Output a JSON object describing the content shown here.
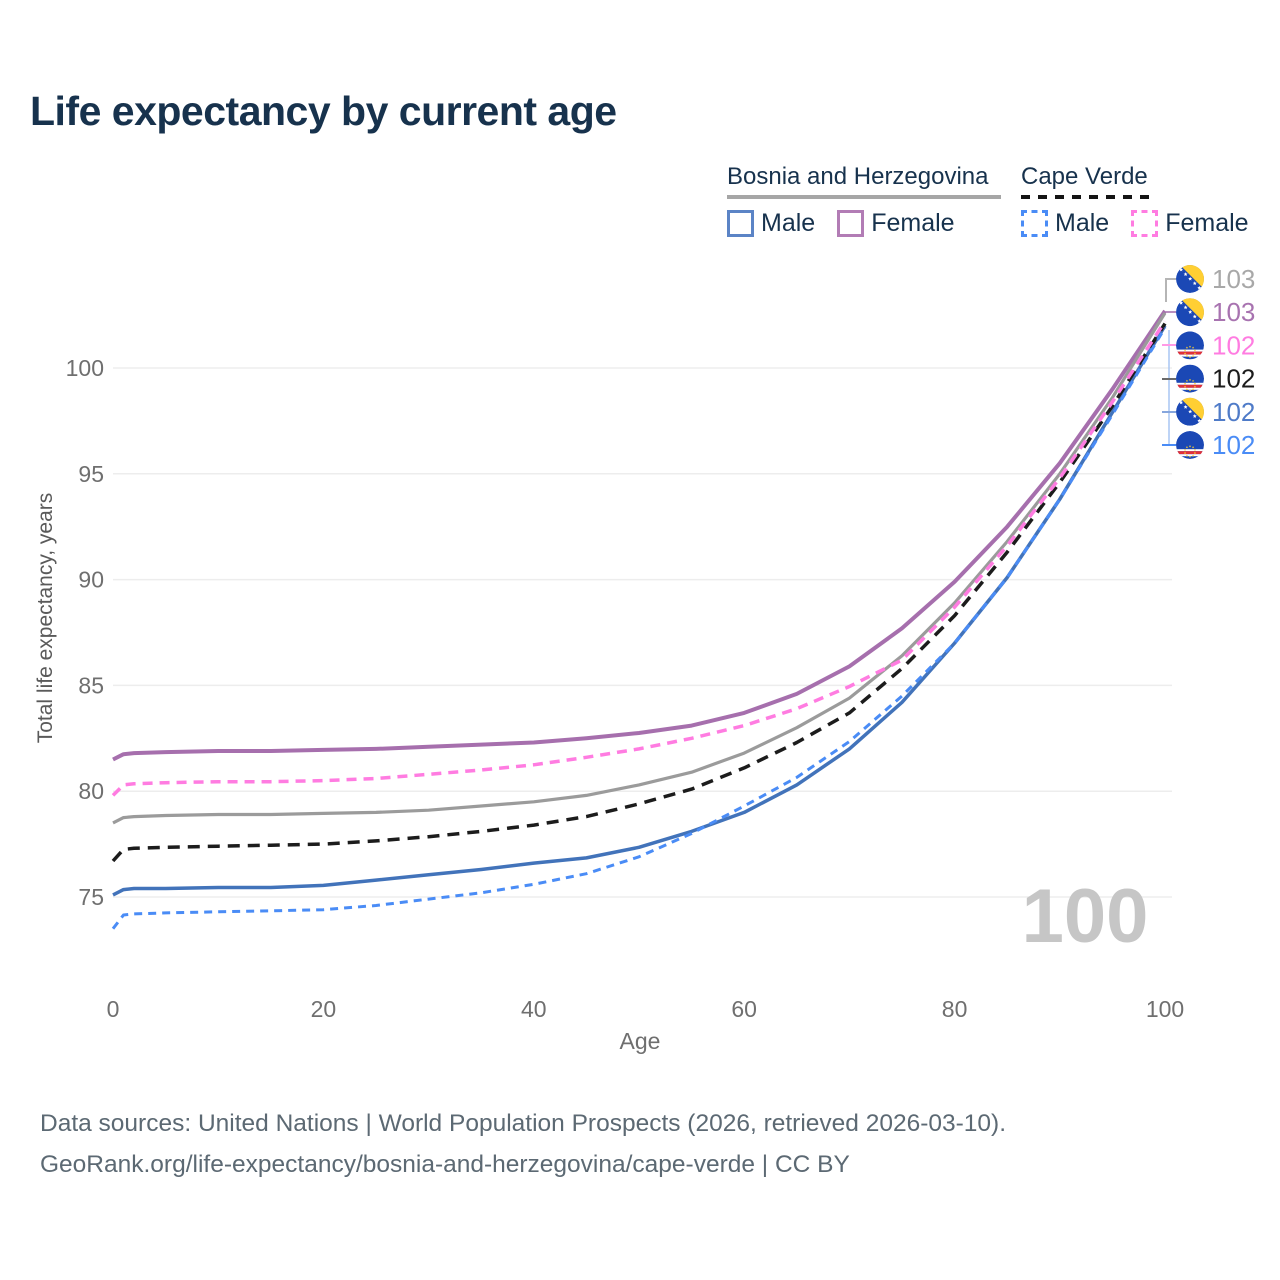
{
  "title": "Life expectancy by current age",
  "legend": {
    "bosnia": {
      "title": "Bosnia and Herzegovina",
      "male": "Male",
      "female": "Female"
    },
    "cape_verde": {
      "title": "Cape Verde",
      "male": "Male",
      "female": "Female"
    }
  },
  "watermark": "100",
  "footer": {
    "line1": "Data sources: United Nations | World Population Prospects (2026, retrieved 2026-03-10).",
    "line2": "GeoRank.org/life-expectancy/bosnia-and-herzegovina/cape-verde | CC BY"
  },
  "colors": {
    "title_text": "#17324d",
    "axis_text": "#6f6f6f",
    "grid": "#ededed",
    "bosnia_female": "#a66fad",
    "bosnia_total": "#9b9b9b",
    "bosnia_male": "#4273ba",
    "cape_verde_female": "#ff7ce1",
    "cape_verde_total": "#1c1c1c",
    "cape_verde_male": "#4a8cf6",
    "watermark": "#c6c6c6"
  },
  "chart_data": {
    "type": "line",
    "title": "Life expectancy by current age",
    "xlabel": "Age",
    "ylabel": "Total life expectancy, years",
    "xlim": [
      0,
      100
    ],
    "ylim": [
      73,
      103.5
    ],
    "xticks": [
      0,
      20,
      40,
      60,
      80,
      100
    ],
    "yticks": [
      75,
      80,
      85,
      90,
      95,
      100
    ],
    "grid": true,
    "legend_position": "top-right",
    "x": [
      0,
      1,
      2,
      5,
      10,
      15,
      20,
      25,
      30,
      35,
      40,
      45,
      50,
      55,
      60,
      65,
      70,
      75,
      80,
      85,
      90,
      95,
      100
    ],
    "series": [
      {
        "name": "Bosnia and Herzegovina Female",
        "color": "#a66fad",
        "dash": null,
        "width": 4,
        "values": [
          81.5,
          81.75,
          81.8,
          81.85,
          81.9,
          81.9,
          81.95,
          82.0,
          82.1,
          82.2,
          82.3,
          82.5,
          82.75,
          83.1,
          83.7,
          84.6,
          85.9,
          87.7,
          89.9,
          92.5,
          95.5,
          99.0,
          102.7
        ]
      },
      {
        "name": "Bosnia and Herzegovina Total",
        "color": "#9b9b9b",
        "dash": null,
        "width": 3.2,
        "values": [
          78.5,
          78.75,
          78.8,
          78.85,
          78.9,
          78.9,
          78.95,
          79.0,
          79.1,
          79.3,
          79.5,
          79.8,
          80.3,
          80.9,
          81.8,
          83.0,
          84.4,
          86.4,
          88.9,
          91.8,
          95.0,
          98.6,
          102.6
        ]
      },
      {
        "name": "Bosnia and Herzegovina Male",
        "color": "#4273ba",
        "dash": null,
        "width": 3.5,
        "values": [
          75.1,
          75.35,
          75.4,
          75.4,
          75.45,
          75.45,
          75.55,
          75.8,
          76.05,
          76.3,
          76.6,
          76.85,
          77.35,
          78.1,
          79.0,
          80.3,
          82.0,
          84.2,
          87.0,
          90.1,
          93.8,
          97.9,
          102.0
        ]
      },
      {
        "name": "Cape Verde Total",
        "color": "#1c1c1c",
        "dash": "12 8",
        "width": 3.5,
        "values": [
          76.7,
          77.25,
          77.3,
          77.35,
          77.4,
          77.45,
          77.5,
          77.65,
          77.85,
          78.1,
          78.4,
          78.8,
          79.4,
          80.1,
          81.1,
          82.3,
          83.7,
          85.8,
          88.3,
          91.3,
          94.6,
          98.2,
          102.1
        ]
      },
      {
        "name": "Cape Verde Female",
        "color": "#ff7ce1",
        "dash": "10 7",
        "width": 3.5,
        "values": [
          79.8,
          80.3,
          80.35,
          80.4,
          80.45,
          80.45,
          80.5,
          80.6,
          80.8,
          81.0,
          81.25,
          81.6,
          82.0,
          82.5,
          83.1,
          83.9,
          84.95,
          86.2,
          88.7,
          91.6,
          94.8,
          98.4,
          102.2
        ]
      },
      {
        "name": "Cape Verde Male",
        "color": "#4a8cf6",
        "dash": "8 6",
        "width": 3,
        "values": [
          73.5,
          74.15,
          74.2,
          74.25,
          74.3,
          74.35,
          74.4,
          74.6,
          74.9,
          75.2,
          75.6,
          76.1,
          76.9,
          78.0,
          79.3,
          80.65,
          82.35,
          84.5,
          87.0,
          90.1,
          93.8,
          97.8,
          101.9
        ]
      }
    ],
    "end_labels": [
      {
        "value": "103",
        "color": "#a8a8a8",
        "flag": "bih",
        "series": "Bosnia and Herzegovina Total"
      },
      {
        "value": "103",
        "color": "#a873b0",
        "flag": "bih",
        "series": "Bosnia and Herzegovina Female"
      },
      {
        "value": "102",
        "color": "#ff7ce1",
        "flag": "cv",
        "series": "Cape Verde Female"
      },
      {
        "value": "102",
        "color": "#1c1c1c",
        "flag": "cv",
        "series": "Cape Verde Total"
      },
      {
        "value": "102",
        "color": "#4f7bc8",
        "flag": "bih",
        "series": "Bosnia and Herzegovina Male"
      },
      {
        "value": "102",
        "color": "#4a8cf6",
        "flag": "cv",
        "series": "Cape Verde Male"
      }
    ]
  }
}
